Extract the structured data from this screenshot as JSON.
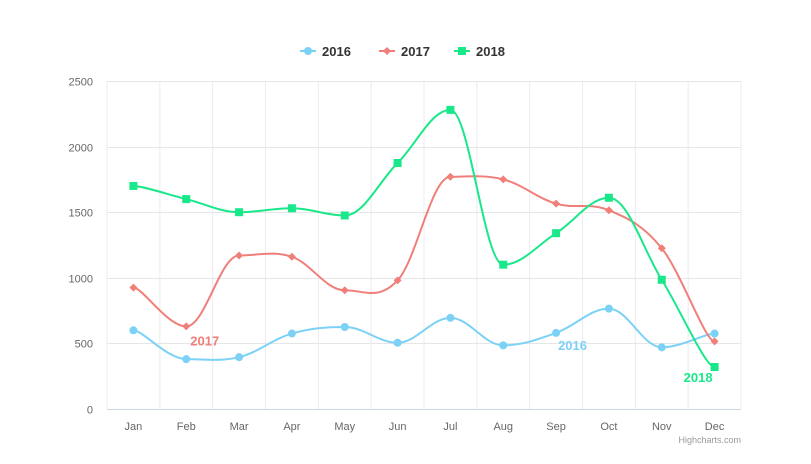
{
  "chart_data": {
    "type": "line",
    "smooth": true,
    "categories": [
      "Jan",
      "Feb",
      "Mar",
      "Apr",
      "May",
      "Jun",
      "Jul",
      "Aug",
      "Sep",
      "Oct",
      "Nov",
      "Dec"
    ],
    "ylim": [
      0,
      2500
    ],
    "yticks": [
      0,
      500,
      1000,
      1500,
      2000,
      2500
    ],
    "grid": true,
    "legend": "top-center",
    "series": [
      {
        "name": "2016",
        "color": "#7cd1f6",
        "marker": "circle",
        "values": [
          600,
          380,
          395,
          575,
          625,
          505,
          695,
          485,
          580,
          765,
          470,
          575
        ],
        "label": "2016",
        "label_at_index": 8
      },
      {
        "name": "2017",
        "color": "#f07f7a",
        "marker": "diamond",
        "values": [
          925,
          630,
          1170,
          1160,
          905,
          980,
          1770,
          1750,
          1565,
          1515,
          1225,
          515
        ],
        "label": "2017",
        "label_at_index": 1
      },
      {
        "name": "2018",
        "color": "#19e88a",
        "marker": "square",
        "values": [
          1700,
          1600,
          1500,
          1530,
          1475,
          1875,
          2280,
          1100,
          1340,
          1610,
          985,
          320
        ],
        "label": "2018",
        "label_at_index": 11
      }
    ]
  },
  "credits": "Highcharts.com"
}
